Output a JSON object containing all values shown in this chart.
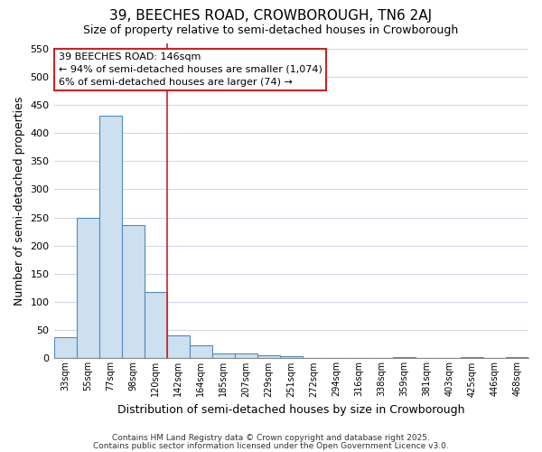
{
  "title": "39, BEECHES ROAD, CROWBOROUGH, TN6 2AJ",
  "subtitle": "Size of property relative to semi-detached houses in Crowborough",
  "xlabel": "Distribution of semi-detached houses by size in Crowborough",
  "ylabel": "Number of semi-detached properties",
  "categories": [
    "33sqm",
    "55sqm",
    "77sqm",
    "98sqm",
    "120sqm",
    "142sqm",
    "164sqm",
    "185sqm",
    "207sqm",
    "229sqm",
    "251sqm",
    "272sqm",
    "294sqm",
    "316sqm",
    "338sqm",
    "359sqm",
    "381sqm",
    "403sqm",
    "425sqm",
    "446sqm",
    "468sqm"
  ],
  "values": [
    37,
    250,
    430,
    237,
    118,
    40,
    23,
    9,
    9,
    5,
    4,
    1,
    0,
    0,
    0,
    3,
    0,
    0,
    3,
    0,
    3
  ],
  "bar_color": "#cce0f0",
  "bar_edge_color": "#5588bb",
  "background_color": "#ffffff",
  "grid_color": "#d0d8e8",
  "annotation_text": "39 BEECHES ROAD: 146sqm\n← 94% of semi-detached houses are smaller (1,074)\n6% of semi-detached houses are larger (74) →",
  "annotation_box_color": "#ffffff",
  "annotation_box_edge_color": "#cc2222",
  "vline_x_index": 5,
  "vline_color": "#cc2222",
  "ylim": [
    0,
    560
  ],
  "yticks": [
    0,
    50,
    100,
    150,
    200,
    250,
    300,
    350,
    400,
    450,
    500,
    550
  ],
  "footer_line1": "Contains HM Land Registry data © Crown copyright and database right 2025.",
  "footer_line2": "Contains public sector information licensed under the Open Government Licence v3.0."
}
